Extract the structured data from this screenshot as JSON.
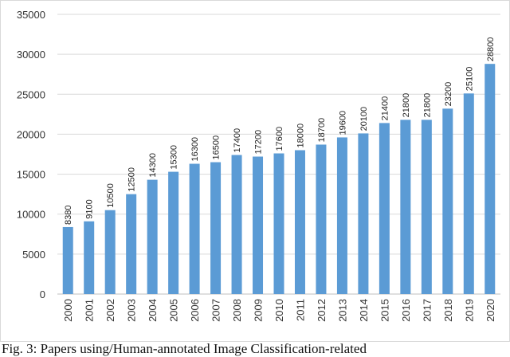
{
  "chart_data": {
    "type": "bar",
    "title": "",
    "xlabel": "",
    "ylabel": "",
    "categories": [
      "2000",
      "2001",
      "2002",
      "2003",
      "2004",
      "2005",
      "2006",
      "2007",
      "2008",
      "2009",
      "2010",
      "2011",
      "2012",
      "2013",
      "2014",
      "2015",
      "2016",
      "2017",
      "2018",
      "2019",
      "2020"
    ],
    "values": [
      8380,
      9100,
      10500,
      12500,
      14300,
      15300,
      16300,
      16500,
      17400,
      17200,
      17600,
      18000,
      18700,
      19600,
      20100,
      21400,
      21800,
      21800,
      23200,
      25100,
      28800
    ],
    "ylim": [
      0,
      35000
    ],
    "yticks": [
      0,
      5000,
      10000,
      15000,
      20000,
      25000,
      30000,
      35000
    ],
    "grid": true,
    "legend": "none",
    "bar_color": "#5b9bd5"
  },
  "caption": "Fig. 3: Papers using/Human-annotated Image Classification-related"
}
